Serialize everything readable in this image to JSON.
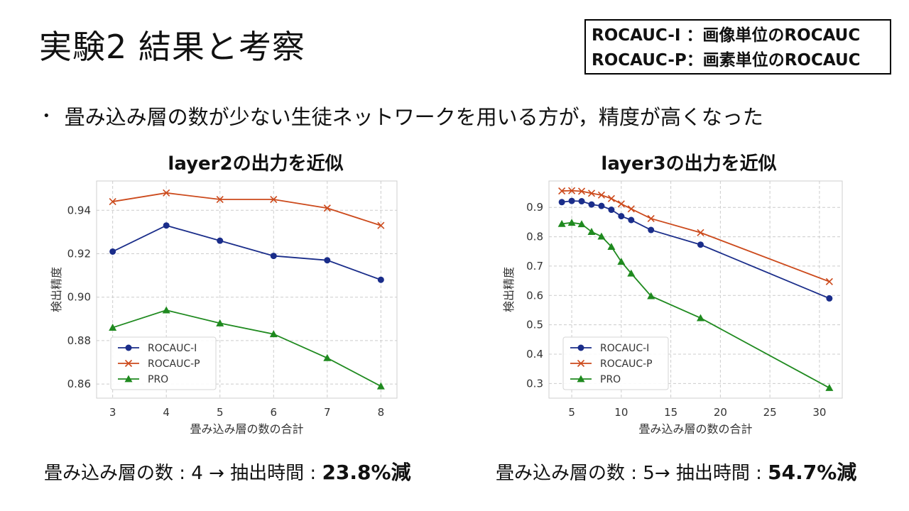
{
  "slide": {
    "title": "実験2 結果と考察",
    "definitions": [
      "ROCAUC-I ：画像単位のROCAUC",
      "ROCAUC-P：画素単位のROCAUC"
    ],
    "bullet": "畳み込み層の数が少ない生徒ネットワークを用いる方が，精度が高くなった",
    "footer_left": {
      "prefix": "畳み込み層の数 : 4 → 抽出時間 : ",
      "emphasis": "23.8%減"
    },
    "footer_right": {
      "prefix": "畳み込み層の数 : 5→ 抽出時間 : ",
      "emphasis": "54.7%減"
    }
  },
  "colors": {
    "rocauc_i": "#1a2d8a",
    "rocauc_p": "#cc4a1c",
    "pro": "#1f8a1f"
  },
  "chart_data": [
    {
      "type": "line",
      "title": "layer2の出力を近似",
      "xlabel": "畳み込み層の数の合計",
      "ylabel": "検出精度",
      "x": [
        3,
        4,
        5,
        6,
        7,
        8
      ],
      "xticks": [
        3,
        4,
        5,
        6,
        7,
        8
      ],
      "yticks": [
        0.86,
        0.88,
        0.9,
        0.92,
        0.94
      ],
      "xlim": [
        2.7,
        8.3
      ],
      "ylim": [
        0.8535,
        0.9535
      ],
      "grid": true,
      "legend": "lower-left",
      "series": [
        {
          "name": "ROCAUC-I",
          "marker": "circle",
          "values": [
            0.921,
            0.933,
            0.926,
            0.919,
            0.917,
            0.908
          ]
        },
        {
          "name": "ROCAUC-P",
          "marker": "x",
          "values": [
            0.944,
            0.948,
            0.945,
            0.945,
            0.941,
            0.933
          ]
        },
        {
          "name": "PRO",
          "marker": "triangle",
          "values": [
            0.886,
            0.894,
            0.888,
            0.883,
            0.872,
            0.859
          ]
        }
      ]
    },
    {
      "type": "line",
      "title": "layer3の出力を近似",
      "xlabel": "畳み込み層の数の合計",
      "ylabel": "検出精度",
      "x": [
        4,
        5,
        6,
        7,
        8,
        9,
        10,
        11,
        13,
        18,
        31
      ],
      "xticks": [
        5,
        10,
        15,
        20,
        25,
        30
      ],
      "yticks": [
        0.3,
        0.4,
        0.5,
        0.6,
        0.7,
        0.8,
        0.9
      ],
      "xlim": [
        2.7,
        32.3
      ],
      "ylim": [
        0.25,
        0.99
      ],
      "grid": true,
      "legend": "lower-left",
      "series": [
        {
          "name": "ROCAUC-I",
          "marker": "circle",
          "values": [
            0.918,
            0.922,
            0.921,
            0.91,
            0.905,
            0.892,
            0.87,
            0.857,
            0.823,
            0.773,
            0.59
          ]
        },
        {
          "name": "ROCAUC-P",
          "marker": "x",
          "values": [
            0.956,
            0.957,
            0.955,
            0.948,
            0.942,
            0.93,
            0.912,
            0.895,
            0.862,
            0.814,
            0.647
          ]
        },
        {
          "name": "PRO",
          "marker": "triangle",
          "values": [
            0.844,
            0.848,
            0.843,
            0.817,
            0.801,
            0.766,
            0.715,
            0.675,
            0.598,
            0.523,
            0.285
          ]
        }
      ]
    }
  ]
}
